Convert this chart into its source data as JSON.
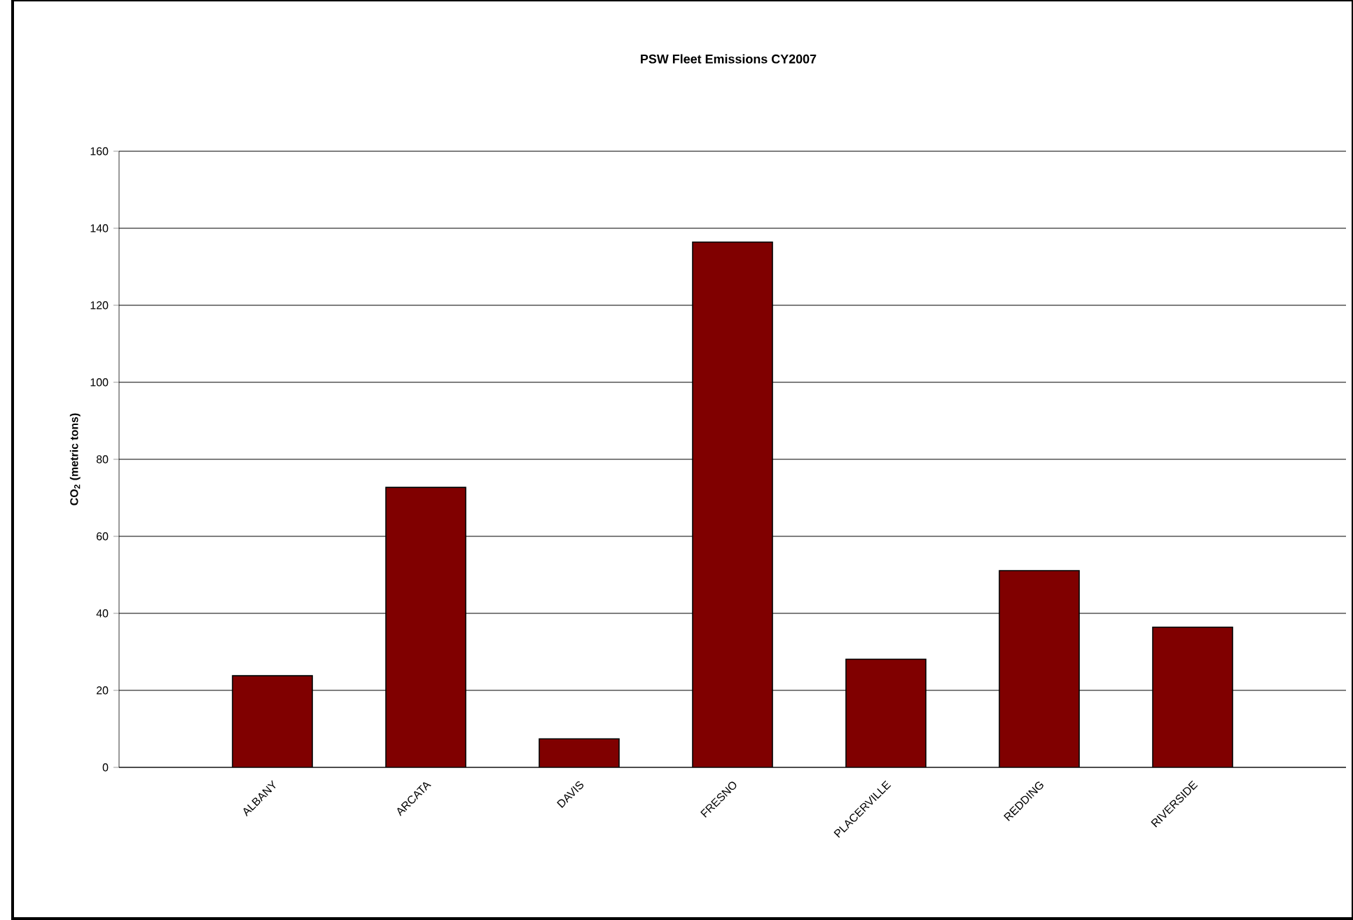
{
  "chart_data": {
    "type": "bar",
    "title": "PSW Fleet Emissions CY2007",
    "ylabel": "CO$_{2}$ (metric tons)",
    "categories": [
      "ALBANY",
      "ARCATA",
      "DAVIS",
      "FRESNO",
      "PLACERVILLE",
      "REDDING",
      "RIVERSIDE"
    ],
    "values": [
      23.8,
      72.7,
      7.4,
      136.4,
      28.1,
      51.1,
      36.4
    ],
    "color": "#800000",
    "ylim": [
      0,
      160
    ],
    "yticks": [
      0,
      20,
      40,
      60,
      80,
      100,
      120,
      140,
      160
    ],
    "grid": "y"
  }
}
